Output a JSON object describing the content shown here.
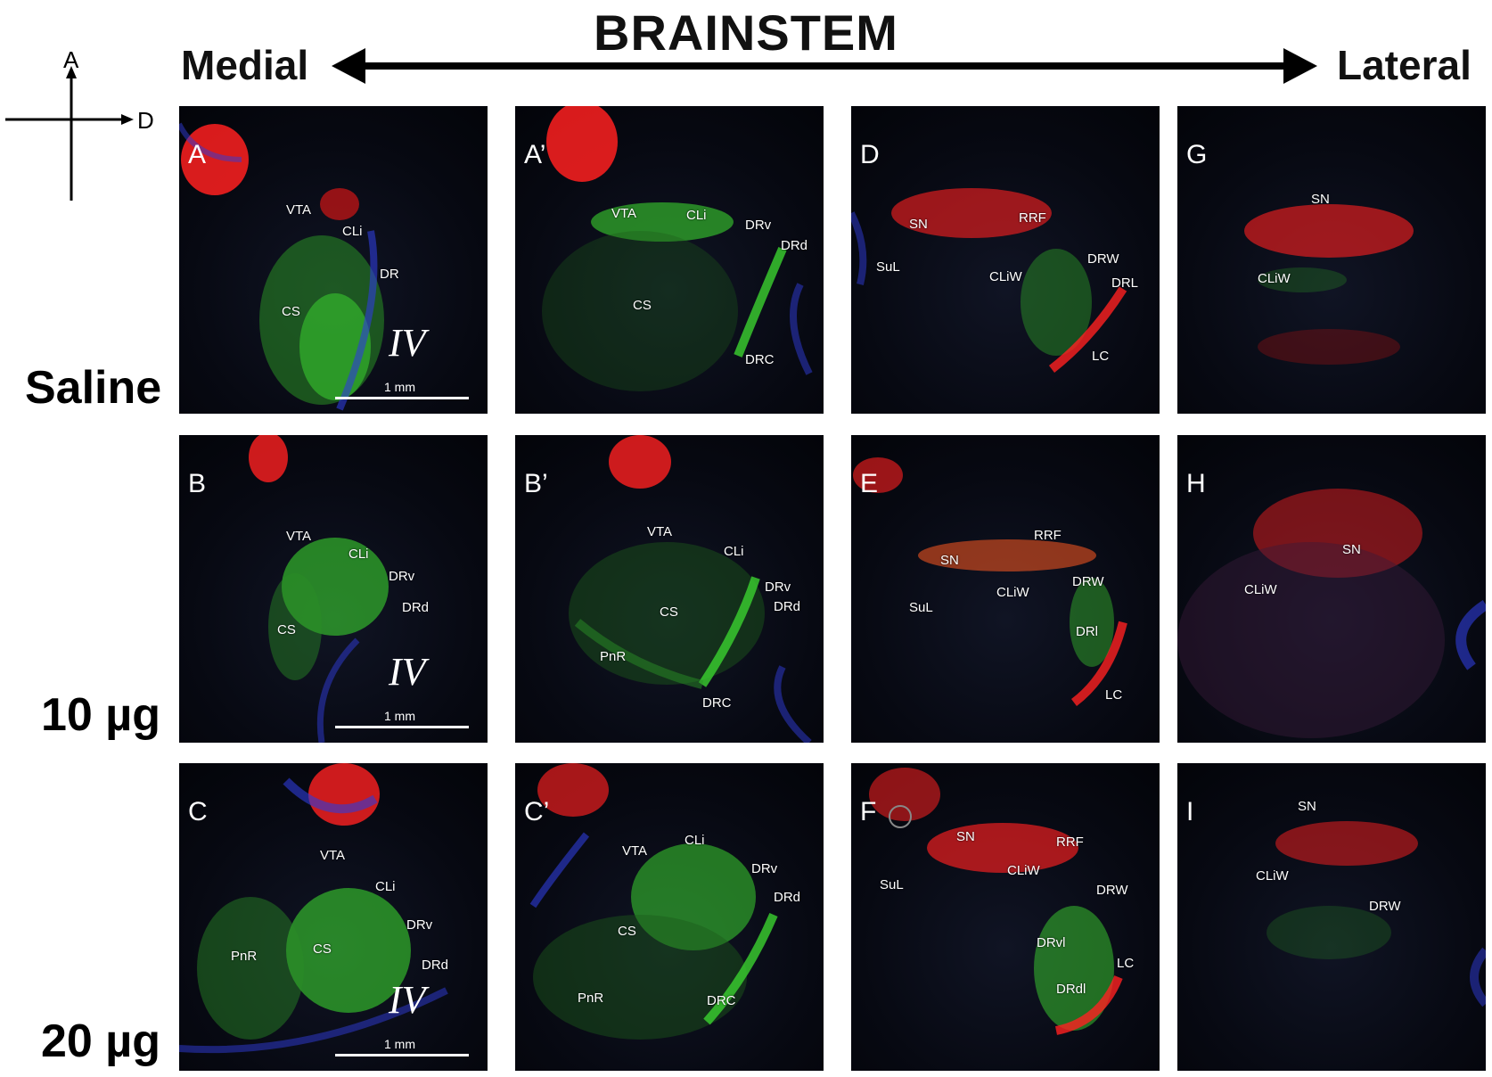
{
  "header": {
    "title": "BRAINSTEM",
    "left_label": "Medial",
    "right_label": "Lateral"
  },
  "compass": {
    "up": "A",
    "right": "D"
  },
  "rows": [
    {
      "label": "Saline"
    },
    {
      "label": "10 µg"
    },
    {
      "label": "20 µg"
    }
  ],
  "scale_bar": "1 mm",
  "ventricle_label": "IV",
  "colors": {
    "red_channel": "#ff2a2a",
    "green_channel": "#33e02a",
    "blue_channel": "#2a3cff",
    "background": "#070912"
  },
  "panels": {
    "A": {
      "letter": "A",
      "regions": [
        "VTA",
        "CLi",
        "DR",
        "CS"
      ]
    },
    "A2": {
      "letter": "A’",
      "regions": [
        "VTA",
        "CLi",
        "DRv",
        "DRd",
        "CS",
        "DRC"
      ]
    },
    "D": {
      "letter": "D",
      "regions": [
        "SN",
        "RRF",
        "SuL",
        "CLiW",
        "DRW",
        "DRL",
        "LC"
      ]
    },
    "G": {
      "letter": "G",
      "regions": [
        "SN",
        "CLiW"
      ]
    },
    "B": {
      "letter": "B",
      "regions": [
        "VTA",
        "CLi",
        "DRv",
        "DRd",
        "CS"
      ]
    },
    "B2": {
      "letter": "B’",
      "regions": [
        "VTA",
        "CLi",
        "DRv",
        "DRd",
        "CS",
        "PnR",
        "DRC"
      ]
    },
    "E": {
      "letter": "E",
      "regions": [
        "RRF",
        "SN",
        "CLiW",
        "DRW",
        "SuL",
        "DRl",
        "LC"
      ]
    },
    "H": {
      "letter": "H",
      "regions": [
        "SN",
        "CLiW"
      ]
    },
    "C": {
      "letter": "C",
      "regions": [
        "VTA",
        "CLi",
        "DRv",
        "CS",
        "PnR",
        "DRd"
      ]
    },
    "C2": {
      "letter": "C’",
      "regions": [
        "VTA",
        "CLi",
        "DRv",
        "DRd",
        "CS",
        "PnR",
        "DRC"
      ]
    },
    "F": {
      "letter": "F",
      "regions": [
        "SN",
        "RRF",
        "CLiW",
        "SuL",
        "DRW",
        "DRvl",
        "LC",
        "DRdl"
      ]
    },
    "I": {
      "letter": "I",
      "regions": [
        "SN",
        "CLiW",
        "DRW"
      ]
    }
  }
}
